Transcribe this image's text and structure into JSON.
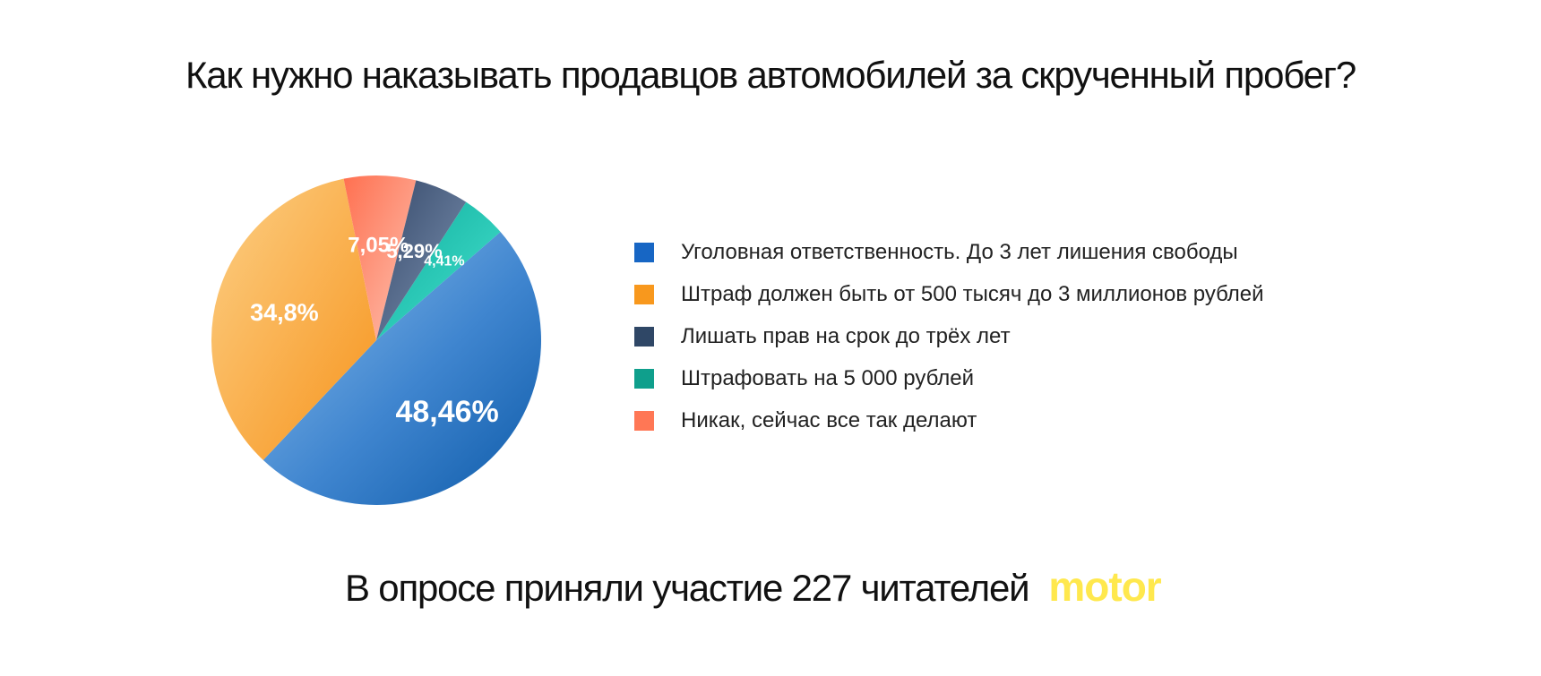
{
  "chart_data": {
    "type": "pie",
    "title": "Как нужно наказывать продавцов автомобилей за скрученный пробег?",
    "slices": [
      {
        "label": "Уголовная ответственность. До 3 лет лишения свободы",
        "value": 48.46,
        "value_label": "48,46%",
        "color": "#2a6fc0"
      },
      {
        "label": "Штраф должен быть от 500 тысяч до 3 миллионов рублей",
        "value": 34.8,
        "value_label": "34,8%",
        "color": "#f89b2e"
      },
      {
        "label": "Лишать прав на срок до трёх лет",
        "value": 5.29,
        "value_label": "5,29%",
        "color": "#3f5575"
      },
      {
        "label": "Штрафовать на 5 000 рублей",
        "value": 4.41,
        "value_label": "4,41%",
        "color": "#1ec4b0"
      },
      {
        "label": "Никак, сейчас все так делают",
        "value": 7.05,
        "value_label": "7,05%",
        "color": "#fb8067"
      }
    ],
    "legend_position": "right"
  },
  "footer": {
    "text": "В опросе приняли участие 227 читателей",
    "logo": "motor",
    "logo_color": "#ffe84d"
  },
  "legend_colors": [
    "#1766c4",
    "#f8981d",
    "#2f4766",
    "#0f9f8c",
    "#ff7755"
  ]
}
